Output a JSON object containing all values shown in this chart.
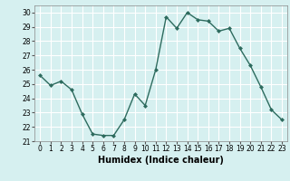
{
  "x": [
    0,
    1,
    2,
    3,
    4,
    5,
    6,
    7,
    8,
    9,
    10,
    11,
    12,
    13,
    14,
    15,
    16,
    17,
    18,
    19,
    20,
    21,
    22,
    23
  ],
  "y": [
    25.6,
    24.9,
    25.2,
    24.6,
    22.9,
    21.5,
    21.4,
    21.4,
    22.5,
    24.3,
    23.5,
    26.0,
    29.7,
    28.9,
    30.0,
    29.5,
    29.4,
    28.7,
    28.9,
    27.5,
    26.3,
    24.8,
    23.2,
    22.5
  ],
  "line_color": "#2d6b5e",
  "marker": "D",
  "marker_size": 2.0,
  "line_width": 1.0,
  "xlabel": "Humidex (Indice chaleur)",
  "xlabel_fontsize": 7,
  "xlabel_bold": true,
  "ylim": [
    21,
    30.5
  ],
  "yticks": [
    21,
    22,
    23,
    24,
    25,
    26,
    27,
    28,
    29,
    30
  ],
  "xticks": [
    0,
    1,
    2,
    3,
    4,
    5,
    6,
    7,
    8,
    9,
    10,
    11,
    12,
    13,
    14,
    15,
    16,
    17,
    18,
    19,
    20,
    21,
    22,
    23
  ],
  "xtick_labels": [
    "0",
    "1",
    "2",
    "3",
    "4",
    "5",
    "6",
    "7",
    "8",
    "9",
    "10",
    "11",
    "12",
    "13",
    "14",
    "15",
    "16",
    "17",
    "18",
    "19",
    "20",
    "21",
    "22",
    "23"
  ],
  "background_color": "#d6f0f0",
  "grid_color": "#ffffff",
  "tick_fontsize": 5.5,
  "xlim": [
    -0.5,
    23.5
  ]
}
